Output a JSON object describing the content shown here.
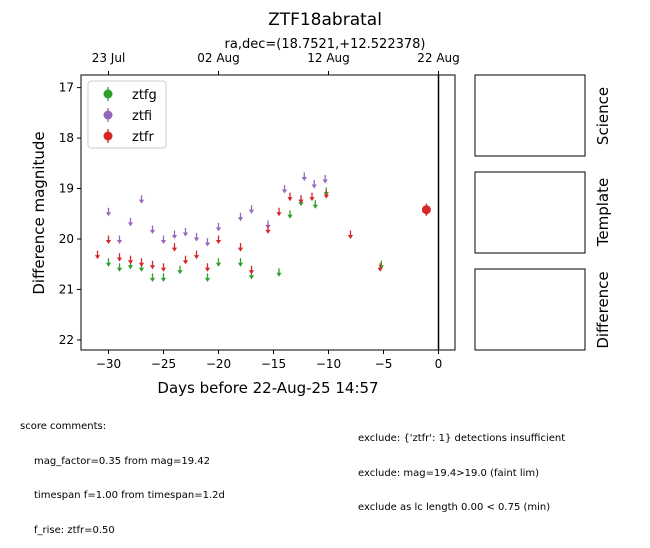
{
  "chart_data": {
    "type": "scatter",
    "title": "ZTF18abratal",
    "subtitle": "ra,dec=(18.7521,+12.522378)",
    "xlabel": "Days before 22-Aug-25 14:57",
    "ylabel": "Difference magnitude",
    "xlim": [
      -32.5,
      1.5
    ],
    "ylim": [
      22.2,
      16.75
    ],
    "y_inverted": true,
    "x_ticks": [
      -30,
      -25,
      -20,
      -15,
      -10,
      -5,
      0
    ],
    "x_tick_labels": [
      "−30",
      "−25",
      "−20",
      "−15",
      "−10",
      "−5",
      "0"
    ],
    "y_ticks": [
      17,
      18,
      19,
      20,
      21,
      22
    ],
    "y_tick_labels": [
      "17",
      "18",
      "19",
      "20",
      "21",
      "22"
    ],
    "top_axis_ticks": [
      -30,
      -20,
      -10,
      0
    ],
    "top_axis_labels": [
      "23 Jul",
      "02 Aug",
      "12 Aug",
      "22 Aug"
    ],
    "vline_x": 0,
    "legend_position": "upper-left",
    "series": [
      {
        "name": "ztfg",
        "color": "#2ca02c",
        "marker": "down-arrow",
        "x": [
          -30,
          -29,
          -28,
          -27,
          -26,
          -25,
          -23.5,
          -21,
          -20,
          -18,
          -17,
          -14.5,
          -13.5,
          -12.5,
          -11.2,
          -10.2,
          -5.2
        ],
        "y": [
          20.5,
          20.6,
          20.55,
          20.6,
          20.8,
          20.8,
          20.65,
          20.8,
          20.5,
          20.5,
          20.75,
          20.7,
          19.55,
          19.3,
          19.35,
          19.1,
          20.55
        ]
      },
      {
        "name": "ztfi",
        "color": "#9467bd",
        "marker": "down-arrow",
        "x": [
          -30,
          -29,
          -28,
          -27,
          -26,
          -25,
          -24,
          -23,
          -22,
          -21,
          -20,
          -18,
          -17,
          -15.5,
          -14,
          -12.2,
          -11.3,
          -10.3
        ],
        "y": [
          19.5,
          20.05,
          19.7,
          19.25,
          19.85,
          20.05,
          19.95,
          19.9,
          20.0,
          20.1,
          19.8,
          19.6,
          19.45,
          19.75,
          19.05,
          18.8,
          18.95,
          18.85
        ]
      },
      {
        "name": "ztfr",
        "color": "#d62728",
        "marker": "down-arrow",
        "x": [
          -31,
          -30,
          -29,
          -28,
          -27,
          -26,
          -25,
          -24,
          -23,
          -22,
          -21,
          -20,
          -18,
          -17,
          -15.5,
          -14.5,
          -13.5,
          -12.5,
          -11.5,
          -10.2,
          -8,
          -5.3
        ],
        "y": [
          20.35,
          20.05,
          20.4,
          20.45,
          20.5,
          20.55,
          20.6,
          20.2,
          20.45,
          20.35,
          20.6,
          20.05,
          20.2,
          20.65,
          19.85,
          19.5,
          19.2,
          19.25,
          19.2,
          19.15,
          19.95,
          20.6
        ]
      }
    ],
    "detections": [
      {
        "series": "ztfr",
        "color": "#d62728",
        "x": -1.1,
        "y": 19.42,
        "yerr": 0.12
      }
    ]
  },
  "side_panels": [
    "Science",
    "Template",
    "Difference"
  ],
  "score_comments": {
    "heading": "score comments:",
    "lines": [
      "mag_factor=0.35 from mag=19.42",
      "timespan f=1.00 from timespan=1.2d",
      "f_rise: ztfr=0.50"
    ]
  },
  "exclude_comments": [
    "exclude: {'ztfr': 1} detections insufficient",
    "exclude: mag=19.4>19.0 (faint lim)",
    "exclude as lc length 0.00 < 0.75 (min)"
  ]
}
